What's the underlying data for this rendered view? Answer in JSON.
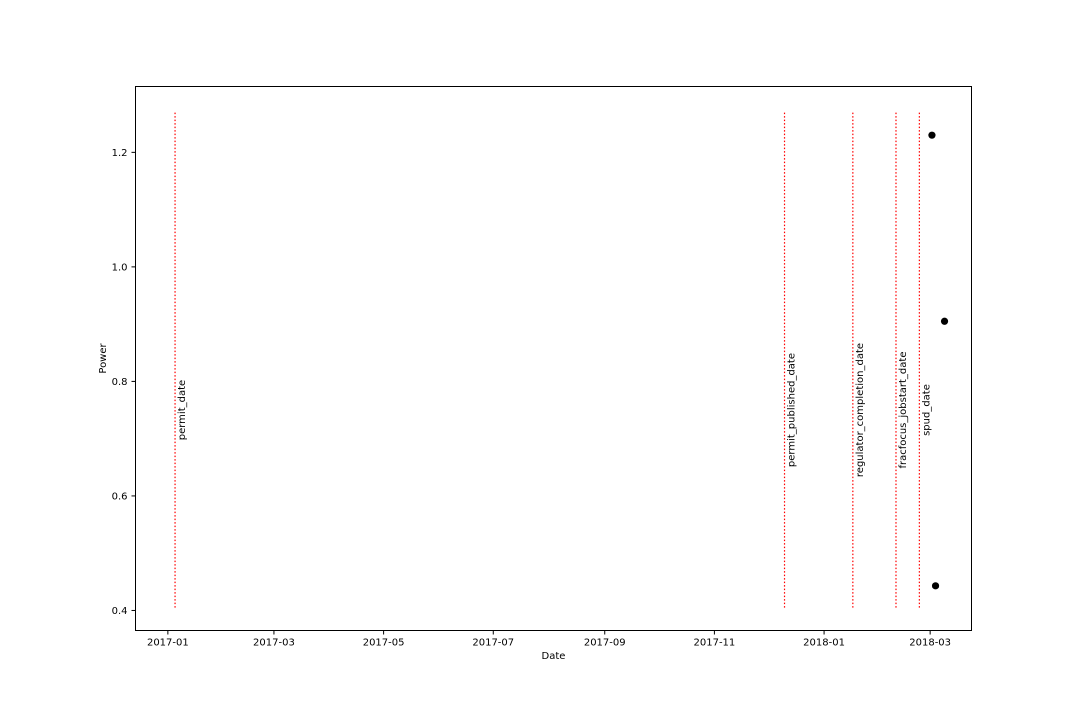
{
  "chart_data": {
    "type": "scatter",
    "xlabel": "Date",
    "ylabel": "Power",
    "x_type": "date",
    "xlim": [
      "2016-12-14",
      "2018-03-24"
    ],
    "ylim": [
      0.365,
      1.315
    ],
    "x_ticks": [
      "2017-01-01",
      "2017-03-01",
      "2017-05-01",
      "2017-07-01",
      "2017-09-01",
      "2017-11-01",
      "2018-01-01",
      "2018-03-01"
    ],
    "x_tick_labels": [
      "2017-01",
      "2017-03",
      "2017-05",
      "2017-07",
      "2017-09",
      "2017-11",
      "2018-01",
      "2018-03"
    ],
    "y_ticks": [
      0.4,
      0.6,
      0.8,
      1.0,
      1.2
    ],
    "y_tick_labels": [
      "0.4",
      "0.6",
      "0.8",
      "1.0",
      "1.2"
    ],
    "grid": false,
    "points": [
      {
        "x": "2018-03-02",
        "y": 1.23
      },
      {
        "x": "2018-03-09",
        "y": 0.905
      },
      {
        "x": "2018-03-04",
        "y": 0.443
      }
    ],
    "point_color": "#000000",
    "events": [
      {
        "date": "2017-01-05",
        "label": "permit_date"
      },
      {
        "date": "2017-12-10",
        "label": "permit_published_date"
      },
      {
        "date": "2018-01-17",
        "label": "regulator_completion_date"
      },
      {
        "date": "2018-02-10",
        "label": "fracfocus_jobstart_date"
      },
      {
        "date": "2018-02-23",
        "label": "spud_date"
      }
    ],
    "event_line_color": "#ff0000",
    "event_line_range": [
      0.405,
      1.27
    ]
  }
}
